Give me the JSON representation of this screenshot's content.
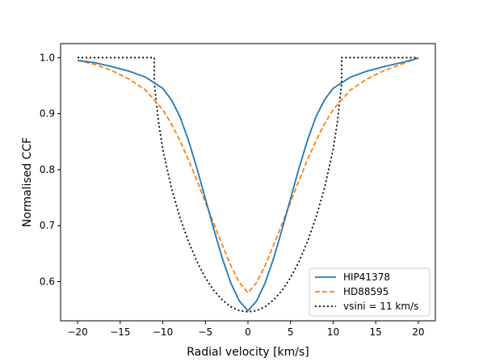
{
  "chart_data": {
    "type": "line",
    "title": "",
    "xlabel": "Radial velocity [km/s]",
    "ylabel": "Normalised CCF",
    "xlim": [
      -22,
      22
    ],
    "ylim": [
      0.53,
      1.025
    ],
    "xticks": [
      -20,
      -15,
      -10,
      -5,
      0,
      5,
      10,
      15,
      20
    ],
    "yticks": [
      0.6,
      0.7,
      0.8,
      0.9,
      1.0
    ],
    "xtick_labels": [
      "−20",
      "−15",
      "−10",
      "−5",
      "0",
      "5",
      "10",
      "15",
      "20"
    ],
    "ytick_labels": [
      "0.6",
      "0.7",
      "0.8",
      "0.9",
      "1.0"
    ],
    "grid": false,
    "legend_position": "bottom-right",
    "series": [
      {
        "name": "HIP41378",
        "color": "#1f77b4",
        "style": "solid",
        "x": [
          -20,
          -18,
          -16,
          -14,
          -12,
          -10,
          -9,
          -8,
          -7,
          -6,
          -5,
          -4,
          -3,
          -2,
          -1,
          0,
          1,
          2,
          3,
          4,
          5,
          6,
          7,
          8,
          9,
          10,
          12,
          14,
          16,
          18,
          20
        ],
        "y": [
          0.995,
          0.991,
          0.984,
          0.976,
          0.965,
          0.945,
          0.925,
          0.895,
          0.853,
          0.803,
          0.748,
          0.693,
          0.641,
          0.597,
          0.565,
          0.548,
          0.565,
          0.597,
          0.641,
          0.693,
          0.748,
          0.803,
          0.853,
          0.895,
          0.925,
          0.945,
          0.965,
          0.976,
          0.984,
          0.991,
          0.999
        ]
      },
      {
        "name": "HD88595",
        "color": "#ff7f0e",
        "style": "dashed",
        "x": [
          -20,
          -18,
          -16,
          -14,
          -12,
          -10,
          -9,
          -8,
          -7,
          -6,
          -5,
          -4,
          -3,
          -2,
          -1,
          0,
          1,
          2,
          3,
          4,
          5,
          6,
          7,
          8,
          9,
          10,
          12,
          14,
          16,
          18,
          20
        ],
        "y": [
          0.995,
          0.988,
          0.977,
          0.962,
          0.942,
          0.907,
          0.882,
          0.852,
          0.818,
          0.781,
          0.742,
          0.703,
          0.665,
          0.628,
          0.598,
          0.58,
          0.598,
          0.628,
          0.665,
          0.703,
          0.742,
          0.781,
          0.818,
          0.852,
          0.882,
          0.907,
          0.942,
          0.962,
          0.977,
          0.988,
          1.0
        ]
      },
      {
        "name": "vsini = 11 km/s",
        "color": "#000000",
        "style": "dotted",
        "x": [
          -20,
          -11,
          -11,
          -10.5,
          -10,
          -9,
          -8,
          -7,
          -6,
          -5,
          -4,
          -3,
          -2,
          -1,
          0,
          1,
          2,
          3,
          4,
          5,
          6,
          7,
          8,
          9,
          10,
          10.5,
          11,
          11,
          20
        ],
        "y": [
          1.0,
          1.0,
          0.955,
          0.885,
          0.836,
          0.768,
          0.715,
          0.672,
          0.636,
          0.607,
          0.584,
          0.567,
          0.555,
          0.548,
          0.546,
          0.548,
          0.555,
          0.567,
          0.584,
          0.607,
          0.636,
          0.672,
          0.715,
          0.768,
          0.836,
          0.885,
          0.955,
          1.0,
          1.0
        ]
      }
    ]
  }
}
